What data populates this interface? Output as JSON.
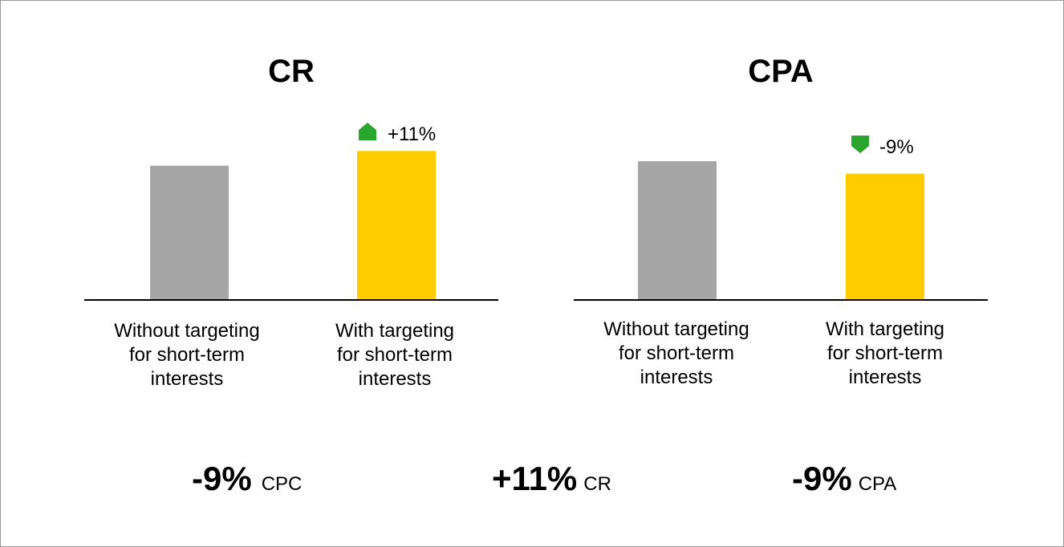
{
  "colors": {
    "baseline_bar": "#a6a6a6",
    "targeting_bar": "#ffcc00",
    "indicator": "#2aa52e"
  },
  "chart_data": [
    {
      "type": "bar",
      "title": "CR",
      "categories": [
        "Without targeting\nfor short-term\ninterests",
        "With targeting\nfor short-term\ninterests"
      ],
      "values": [
        100,
        111
      ],
      "ylim": [
        0,
        125
      ],
      "change": {
        "label": "+11%",
        "direction": "up",
        "on_category": 1
      },
      "grid": false
    },
    {
      "type": "bar",
      "title": "CPA",
      "categories": [
        "Without targeting\nfor short-term\ninterests",
        "With targeting\nfor short-term\ninterests"
      ],
      "values": [
        100,
        91
      ],
      "ylim": [
        0,
        100
      ],
      "change": {
        "label": "-9%",
        "direction": "down",
        "on_category": 1
      },
      "grid": false
    }
  ],
  "summary": [
    {
      "value": "-9%",
      "metric": "CPC"
    },
    {
      "value": "+11%",
      "metric": "CR"
    },
    {
      "value": "-9%",
      "metric": "CPA"
    }
  ]
}
